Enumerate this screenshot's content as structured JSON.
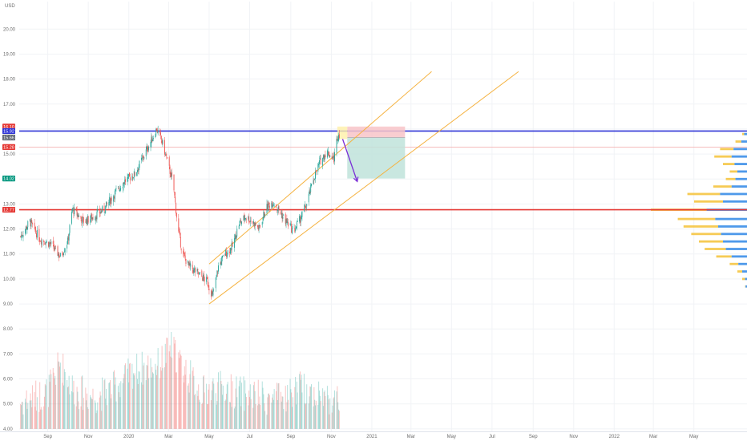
{
  "chart_data": {
    "type": "candlestick",
    "currency_label": "USD",
    "y_ticks": [
      4.0,
      5.0,
      6.0,
      7.0,
      8.0,
      9.0,
      10.0,
      11.0,
      12.0,
      13.0,
      14.0,
      15.0,
      16.0,
      17.0,
      18.0,
      19.0,
      20.0
    ],
    "x_labels": [
      {
        "label": "Sep",
        "date": "2019-09-01"
      },
      {
        "label": "Nov",
        "date": "2019-11-01"
      },
      {
        "label": "2020",
        "date": "2020-01-01"
      },
      {
        "label": "Mar",
        "date": "2020-03-01"
      },
      {
        "label": "May",
        "date": "2020-05-01"
      },
      {
        "label": "Jul",
        "date": "2020-07-01"
      },
      {
        "label": "Sep",
        "date": "2020-09-01"
      },
      {
        "label": "Nov",
        "date": "2020-11-01"
      },
      {
        "label": "2021",
        "date": "2021-01-01"
      },
      {
        "label": "Mar",
        "date": "2021-03-01"
      },
      {
        "label": "May",
        "date": "2021-05-01"
      },
      {
        "label": "Jul",
        "date": "2021-07-01"
      },
      {
        "label": "Sep",
        "date": "2021-09-01"
      },
      {
        "label": "Nov",
        "date": "2021-11-01"
      },
      {
        "label": "2022",
        "date": "2022-01-01"
      },
      {
        "label": "Mar",
        "date": "2022-03-01"
      },
      {
        "label": "May",
        "date": "2022-05-01"
      }
    ],
    "x_range": [
      "2019-07-20",
      "2022-07-20"
    ],
    "y_range": [
      3.9,
      21.1
    ],
    "price_keypoints": [
      [
        "2019-07-22",
        11.7
      ],
      [
        "2019-08-05",
        12.3
      ],
      [
        "2019-08-20",
        11.6
      ],
      [
        "2019-09-05",
        11.4
      ],
      [
        "2019-09-20",
        10.9
      ],
      [
        "2019-10-01",
        11.5
      ],
      [
        "2019-10-08",
        12.8
      ],
      [
        "2019-10-25",
        12.3
      ],
      [
        "2019-11-10",
        12.5
      ],
      [
        "2019-11-25",
        12.8
      ],
      [
        "2019-12-10",
        13.4
      ],
      [
        "2019-12-25",
        13.9
      ],
      [
        "2020-01-10",
        14.2
      ],
      [
        "2020-01-25",
        15.0
      ],
      [
        "2020-02-05",
        15.6
      ],
      [
        "2020-02-12",
        16.0
      ],
      [
        "2020-02-20",
        15.5
      ],
      [
        "2020-03-01",
        14.5
      ],
      [
        "2020-03-08",
        13.8
      ],
      [
        "2020-03-15",
        12.0
      ],
      [
        "2020-03-22",
        11.0
      ],
      [
        "2020-04-01",
        10.5
      ],
      [
        "2020-04-15",
        10.2
      ],
      [
        "2020-04-28",
        9.9
      ],
      [
        "2020-05-06",
        9.3
      ],
      [
        "2020-05-15",
        10.5
      ],
      [
        "2020-05-25",
        11.0
      ],
      [
        "2020-06-05",
        11.3
      ],
      [
        "2020-06-15",
        12.2
      ],
      [
        "2020-06-25",
        12.5
      ],
      [
        "2020-07-05",
        12.3
      ],
      [
        "2020-07-15",
        12.0
      ],
      [
        "2020-07-25",
        12.8
      ],
      [
        "2020-08-05",
        13.1
      ],
      [
        "2020-08-15",
        12.7
      ],
      [
        "2020-08-25",
        12.3
      ],
      [
        "2020-09-05",
        11.9
      ],
      [
        "2020-09-15",
        12.4
      ],
      [
        "2020-09-25",
        13.0
      ],
      [
        "2020-10-05",
        14.0
      ],
      [
        "2020-10-15",
        14.7
      ],
      [
        "2020-10-25",
        15.1
      ],
      [
        "2020-11-05",
        14.8
      ],
      [
        "2020-11-10",
        15.7
      ],
      [
        "2020-11-15",
        15.9
      ]
    ],
    "volume_keypoints": [
      [
        "2019-07-22",
        5.0
      ],
      [
        "2019-09-01",
        5.4
      ],
      [
        "2019-09-20",
        6.6
      ],
      [
        "2019-10-10",
        5.5
      ],
      [
        "2019-11-10",
        5.2
      ],
      [
        "2019-12-10",
        5.6
      ],
      [
        "2020-01-10",
        6.3
      ],
      [
        "2020-02-15",
        6.5
      ],
      [
        "2020-03-05",
        7.2
      ],
      [
        "2020-03-20",
        6.5
      ],
      [
        "2020-04-20",
        5.4
      ],
      [
        "2020-05-15",
        5.6
      ],
      [
        "2020-06-15",
        5.4
      ],
      [
        "2020-07-15",
        5.2
      ],
      [
        "2020-08-15",
        5.1
      ],
      [
        "2020-09-15",
        5.6
      ],
      [
        "2020-10-15",
        5.3
      ],
      [
        "2020-11-15",
        5.0
      ]
    ],
    "volume_scale_base": 4.0,
    "horizontal_levels": [
      {
        "price": 15.92,
        "color": "#2f35d6"
      },
      {
        "price": 12.77,
        "color": "#e53935"
      },
      {
        "price": 15.28,
        "color": "#f4a7a7"
      }
    ],
    "price_tags": [
      {
        "text": "16.10",
        "price": 16.1,
        "color": "#e53935"
      },
      {
        "text": "15.92",
        "price": 15.92,
        "color": "#2f35d6"
      },
      {
        "text": "15.66",
        "price": 15.66,
        "color": "#636a75"
      },
      {
        "text": "15.28",
        "price": 15.28,
        "color": "#e53935"
      },
      {
        "text": "14.02",
        "price": 14.02,
        "color": "#089981"
      },
      {
        "text": "12.77",
        "price": 12.77,
        "color": "#e53935"
      }
    ],
    "channel_lines": [
      {
        "from": [
          "2020-05-01",
          10.6
        ],
        "to": [
          "2021-04-01",
          18.3
        ],
        "color": "#f5b342"
      },
      {
        "from": [
          "2020-05-01",
          9.0
        ],
        "to": [
          "2021-08-10",
          18.3
        ],
        "color": "#f5b342"
      }
    ],
    "short_position": {
      "entry": 15.66,
      "stop": 16.1,
      "target": 14.02,
      "start": "2020-11-25",
      "end": "2021-02-20",
      "stop_color": "#f8c4c8",
      "target_color": "#bfe3db"
    },
    "forecast_arrow": {
      "from": [
        "2020-11-18",
        15.6
      ],
      "to": [
        "2020-12-10",
        13.9
      ],
      "color": "#7b2fd6"
    },
    "highlight_box": {
      "start": "2020-11-10",
      "end": "2020-11-25",
      "low": 15.6,
      "high": 16.1,
      "color": "#fff0a8"
    },
    "volume_profile": {
      "anchor_right": "2022-07-20",
      "rows": [
        {
          "price": 9.7,
          "len": 0.02,
          "blue": 0.015
        },
        {
          "price": 10.0,
          "len": 0.05,
          "blue": 0.02
        },
        {
          "price": 10.3,
          "len": 0.1,
          "blue": 0.05
        },
        {
          "price": 10.6,
          "len": 0.18,
          "blue": 0.09
        },
        {
          "price": 10.9,
          "len": 0.32,
          "blue": 0.16
        },
        {
          "price": 11.2,
          "len": 0.44,
          "blue": 0.22
        },
        {
          "price": 11.5,
          "len": 0.5,
          "blue": 0.25
        },
        {
          "price": 11.8,
          "len": 0.58,
          "blue": 0.27
        },
        {
          "price": 12.1,
          "len": 0.66,
          "blue": 0.3
        },
        {
          "price": 12.4,
          "len": 0.72,
          "blue": 0.33
        },
        {
          "price": 12.77,
          "len": 1.0,
          "blue": 0.42
        },
        {
          "price": 13.1,
          "len": 0.55,
          "blue": 0.25
        },
        {
          "price": 13.4,
          "len": 0.62,
          "blue": 0.28
        },
        {
          "price": 13.7,
          "len": 0.35,
          "blue": 0.16
        },
        {
          "price": 14.0,
          "len": 0.22,
          "blue": 0.12
        },
        {
          "price": 14.3,
          "len": 0.18,
          "blue": 0.1
        },
        {
          "price": 14.6,
          "len": 0.25,
          "blue": 0.13
        },
        {
          "price": 14.9,
          "len": 0.34,
          "blue": 0.16
        },
        {
          "price": 15.2,
          "len": 0.28,
          "blue": 0.14
        },
        {
          "price": 15.5,
          "len": 0.12,
          "blue": 0.06
        },
        {
          "price": 15.8,
          "len": 0.05,
          "blue": 0.03
        }
      ]
    },
    "colors": {
      "up": "#26a69a",
      "down": "#ef5350",
      "grid": "#f1f3f6",
      "axis_text": "#6b6b6b",
      "profile_up": "#f5c542",
      "profile_blue": "#3b8ee8"
    }
  }
}
